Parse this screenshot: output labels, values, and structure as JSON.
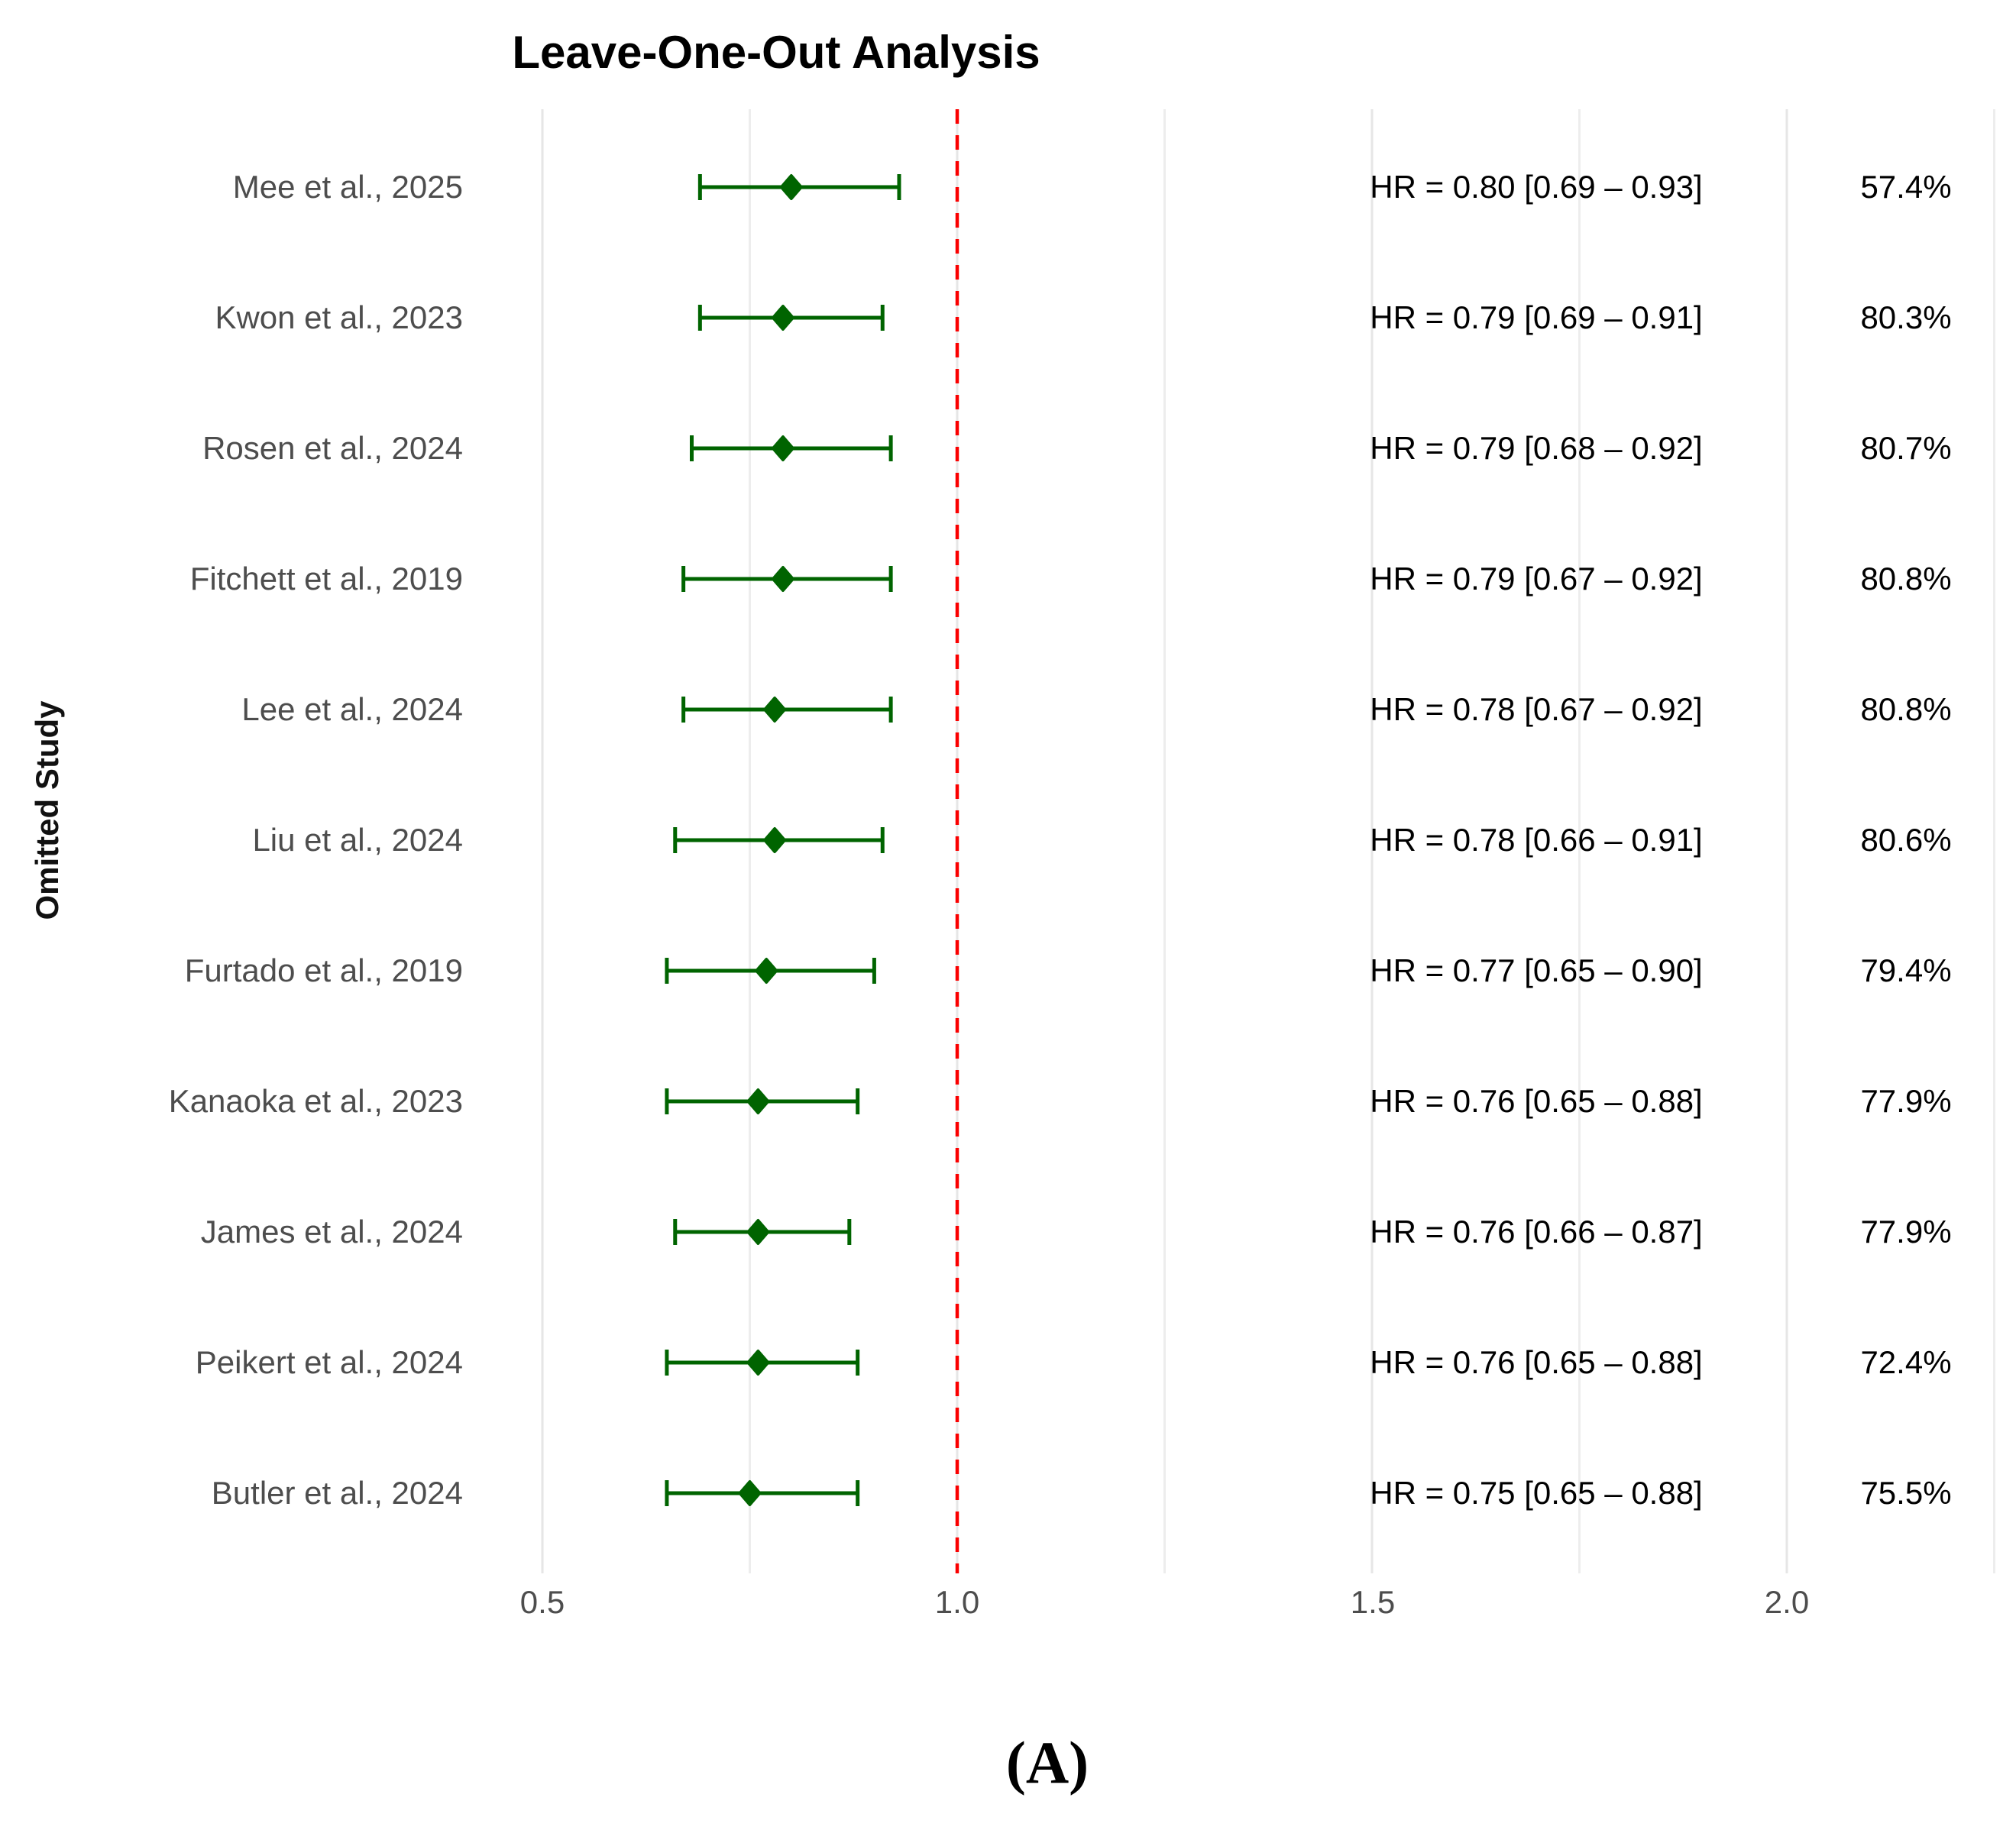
{
  "title": "Leave-One-Out Analysis",
  "y_axis_label": "Omitted Study",
  "caption": "(A)",
  "colors": {
    "point": "#006400",
    "error_bar": "#006400",
    "reference_line": "#fa0000",
    "grid_major": "#e6e6e6",
    "grid_minor": "#ededed",
    "study_label_text": "#4d4d4d",
    "tick_label_text": "#4d4d4d",
    "value_text": "#000000"
  },
  "chart_data": {
    "type": "forest",
    "title": "Leave-One-Out Analysis",
    "xlabel": "",
    "ylabel": "Omitted Study",
    "xlim": [
      0.44,
      2.26
    ],
    "x_ticks": [
      0.5,
      1.0,
      1.5,
      2.0
    ],
    "x_tick_labels": [
      "0.5",
      "1.0",
      "1.5",
      "2.0"
    ],
    "x_minor_gridlines": [
      0.75,
      1.25,
      1.75,
      2.25
    ],
    "reference_line": 1.0,
    "grid": true,
    "legend": "none",
    "studies": [
      {
        "label": "Mee et al., 2025",
        "hr": 0.8,
        "ci_low": 0.69,
        "ci_high": 0.93,
        "hr_text": "HR = 0.80 [0.69 – 0.93]",
        "weight": "57.4%"
      },
      {
        "label": "Kwon et al., 2023",
        "hr": 0.79,
        "ci_low": 0.69,
        "ci_high": 0.91,
        "hr_text": "HR = 0.79 [0.69 – 0.91]",
        "weight": "80.3%"
      },
      {
        "label": "Rosen et al., 2024",
        "hr": 0.79,
        "ci_low": 0.68,
        "ci_high": 0.92,
        "hr_text": "HR = 0.79 [0.68 – 0.92]",
        "weight": "80.7%"
      },
      {
        "label": "Fitchett et al., 2019",
        "hr": 0.79,
        "ci_low": 0.67,
        "ci_high": 0.92,
        "hr_text": "HR = 0.79 [0.67 – 0.92]",
        "weight": "80.8%"
      },
      {
        "label": "Lee et al., 2024",
        "hr": 0.78,
        "ci_low": 0.67,
        "ci_high": 0.92,
        "hr_text": "HR = 0.78 [0.67 – 0.92]",
        "weight": "80.8%"
      },
      {
        "label": "Liu et al., 2024",
        "hr": 0.78,
        "ci_low": 0.66,
        "ci_high": 0.91,
        "hr_text": "HR = 0.78 [0.66 – 0.91]",
        "weight": "80.6%"
      },
      {
        "label": "Furtado et al., 2019",
        "hr": 0.77,
        "ci_low": 0.65,
        "ci_high": 0.9,
        "hr_text": "HR = 0.77 [0.65 – 0.90]",
        "weight": "79.4%"
      },
      {
        "label": "Kanaoka et al., 2023",
        "hr": 0.76,
        "ci_low": 0.65,
        "ci_high": 0.88,
        "hr_text": "HR = 0.76 [0.65 – 0.88]",
        "weight": "77.9%"
      },
      {
        "label": "James et al., 2024",
        "hr": 0.76,
        "ci_low": 0.66,
        "ci_high": 0.87,
        "hr_text": "HR = 0.76 [0.66 – 0.87]",
        "weight": "77.9%"
      },
      {
        "label": "Peikert et al., 2024",
        "hr": 0.76,
        "ci_low": 0.65,
        "ci_high": 0.88,
        "hr_text": "HR = 0.76 [0.65 – 0.88]",
        "weight": "72.4%"
      },
      {
        "label": "Butler et al., 2024",
        "hr": 0.75,
        "ci_low": 0.65,
        "ci_high": 0.88,
        "hr_text": "HR = 0.75 [0.65 – 0.88]",
        "weight": "75.5%"
      }
    ]
  }
}
